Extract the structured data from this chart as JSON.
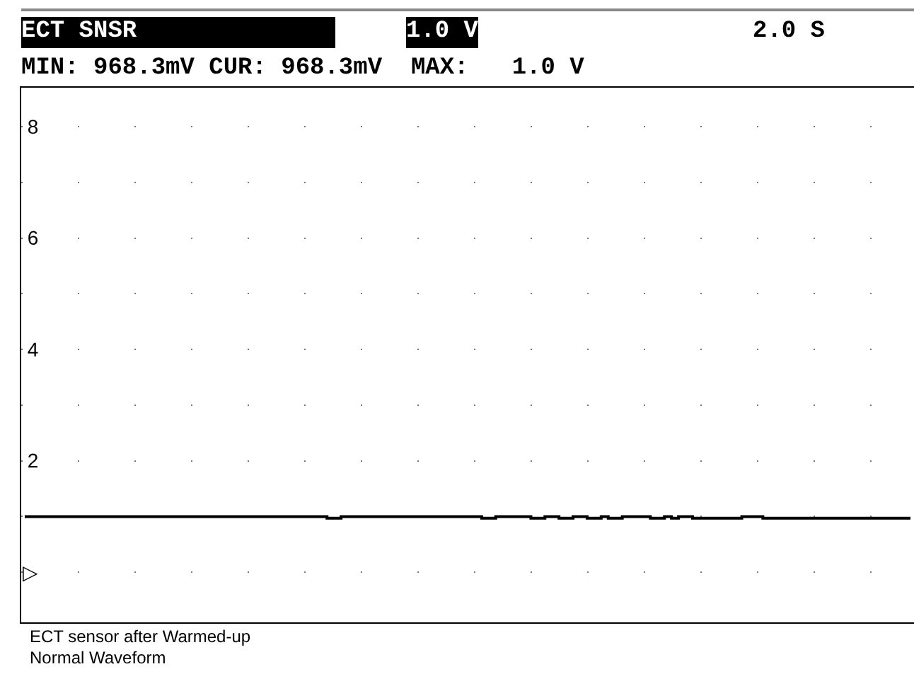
{
  "chart_data": {
    "type": "step",
    "title": "ECT SNSR",
    "subtitle": "1.0 V",
    "annotations": [
      "2.0 S",
      "MIN: 968.3mV CUR: 968.3mV  MAX:   1.0 V",
      "ECT sensor after Warmed-up",
      "Normal Waveform"
    ],
    "categories": [
      null,
      null,
      null,
      null,
      null,
      null,
      null,
      null,
      null,
      null,
      null,
      null,
      null,
      null,
      null,
      null,
      null,
      null,
      null,
      null,
      null,
      null,
      null,
      null,
      null,
      null,
      null,
      null,
      null,
      null,
      null,
      null,
      null,
      null,
      null,
      null,
      null,
      null,
      null,
      null,
      null,
      null,
      null,
      null,
      null,
      null,
      null,
      null,
      null,
      null,
      null,
      null,
      null,
      null,
      null,
      null,
      null,
      null,
      null,
      null,
      null,
      null,
      null,
      null,
      null,
      null,
      null,
      null,
      null,
      null,
      null,
      null,
      null,
      null,
      null,
      null,
      null,
      null,
      null,
      null,
      null,
      null,
      null,
      null,
      null,
      null,
      null,
      null,
      null,
      null,
      null,
      null,
      null,
      null,
      null,
      null,
      null,
      null,
      null,
      null,
      null,
      null,
      null,
      null,
      null,
      null,
      null,
      null,
      null,
      null,
      null,
      null,
      null,
      null,
      null,
      null,
      null,
      null,
      null,
      null,
      null,
      null,
      null,
      null,
      null,
      null,
      null
    ],
    "series": [
      {
        "color": "#000000",
        "values": [
          1,
          1,
          1,
          1,
          1,
          1,
          1,
          1,
          1,
          1,
          1,
          1,
          1,
          1,
          1,
          1,
          1,
          1,
          1,
          1,
          1,
          1,
          1,
          1,
          1,
          1,
          1,
          1,
          1,
          1,
          1,
          1,
          1,
          1,
          1,
          1,
          1,
          1,
          1,
          1,
          1,
          1,
          1,
          0.97,
          0.97,
          1,
          1,
          1,
          1,
          1,
          1,
          1,
          1,
          1,
          1,
          1,
          1,
          1,
          1,
          1,
          1,
          1,
          1,
          1,
          1,
          0.97,
          0.97,
          1,
          1,
          1,
          1,
          1,
          0.97,
          0.97,
          1,
          1,
          0.97,
          0.97,
          1,
          1,
          0.97,
          0.97,
          1,
          0.97,
          0.97,
          1,
          1,
          1,
          1,
          0.97,
          0.97,
          1,
          0.97,
          1,
          1,
          0.97,
          0.97,
          0.97,
          0.97,
          0.97,
          0.97,
          0.97,
          1,
          1,
          1,
          0.97,
          0.97,
          0.97,
          0.97,
          0.97,
          0.97,
          0.97,
          0.97,
          0.97,
          0.97,
          0.97,
          0.97,
          0.97,
          0.97,
          0.97,
          0.97,
          0.97,
          0.97,
          0.97,
          0.97,
          0.97,
          0.97
        ]
      }
    ],
    "ylim": [
      -0.9,
      8.7
    ],
    "yticks": [
      {
        "value": 0,
        "label": "▷"
      },
      {
        "value": 1,
        "label": null
      },
      2,
      {
        "value": 3,
        "label": null
      },
      4,
      {
        "value": 5,
        "label": null
      },
      6,
      {
        "value": 7,
        "label": null
      },
      8
    ],
    "grid": "y",
    "tick_labels": "y",
    "line_style": "solid"
  }
}
